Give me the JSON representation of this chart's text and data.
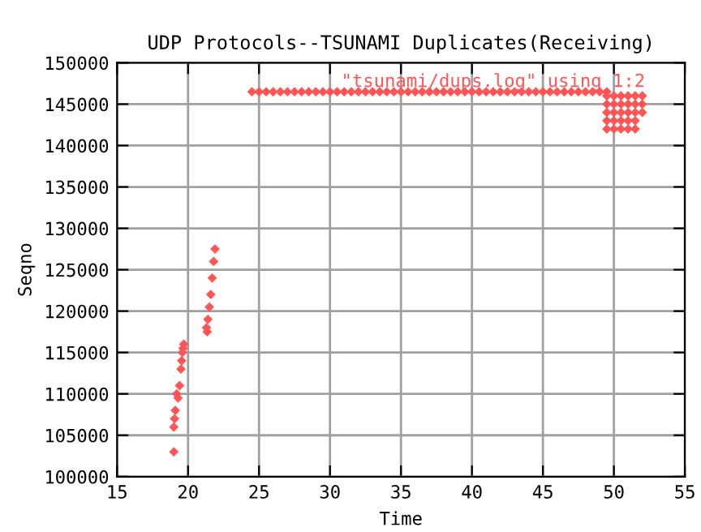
{
  "chart_data": {
    "type": "scatter",
    "title": "UDP Protocols--TSUNAMI Duplicates(Receiving)",
    "xlabel": "Time",
    "ylabel": "Seqno",
    "series": [
      {
        "name": "\"tsunami/dups.log\" using 1:2",
        "color": "#ff5555",
        "x": [
          19.0,
          19.0,
          19.05,
          19.1,
          19.2,
          19.3,
          19.4,
          19.5,
          19.55,
          19.6,
          19.65,
          19.7,
          21.3,
          21.35,
          21.4,
          21.5,
          21.6,
          21.7,
          21.8,
          21.9,
          24.5,
          25.0,
          25.5,
          26.0,
          26.5,
          27.0,
          27.5,
          28.0,
          28.5,
          29.0,
          29.5,
          30.0,
          30.5,
          31.0,
          31.5,
          32.0,
          32.5,
          33.0,
          33.5,
          34.0,
          34.5,
          35.0,
          35.5,
          36.0,
          36.5,
          37.0,
          37.5,
          38.0,
          38.5,
          39.0,
          39.5,
          40.0,
          40.5,
          41.0,
          41.5,
          42.0,
          42.5,
          43.0,
          43.5,
          44.0,
          44.5,
          45.0,
          45.5,
          46.0,
          46.5,
          47.0,
          47.5,
          48.0,
          48.5,
          49.0,
          49.5,
          49.5,
          50.0,
          50.5,
          51.0,
          51.5,
          52.0,
          49.5,
          50.0,
          50.5,
          51.0,
          51.5,
          52.0,
          49.5,
          50.0,
          50.5,
          51.0,
          51.5,
          52.0,
          49.5,
          50.0,
          50.5,
          51.0,
          51.5,
          49.5,
          50.0,
          50.5,
          51.0,
          51.5
        ],
        "values": [
          103000,
          106000,
          107000,
          108000,
          110000,
          109500,
          111000,
          113000,
          114000,
          115000,
          115500,
          116000,
          118000,
          117500,
          119000,
          120500,
          122000,
          124000,
          126000,
          127500,
          146500,
          146500,
          146500,
          146500,
          146500,
          146500,
          146500,
          146500,
          146500,
          146500,
          146500,
          146500,
          146500,
          146500,
          146500,
          146500,
          146500,
          146500,
          146500,
          146500,
          146500,
          146500,
          146500,
          146500,
          146500,
          146500,
          146500,
          146500,
          146500,
          146500,
          146500,
          146500,
          146500,
          146500,
          146500,
          146500,
          146500,
          146500,
          146500,
          146500,
          146500,
          146500,
          146500,
          146500,
          146500,
          146500,
          146500,
          146500,
          146500,
          146500,
          146500,
          146000,
          146000,
          146000,
          146000,
          146000,
          146000,
          145000,
          145000,
          145000,
          145000,
          145000,
          145000,
          144000,
          144000,
          144000,
          144000,
          144000,
          144000,
          143000,
          143000,
          143000,
          143000,
          143000,
          142000,
          142000,
          142000,
          142000,
          142000
        ]
      }
    ],
    "xlim": [
      15,
      55
    ],
    "xticks": [
      15,
      20,
      25,
      30,
      35,
      40,
      45,
      50,
      55
    ],
    "ylim": [
      100000,
      150000
    ],
    "yticks": [
      100000,
      105000,
      110000,
      115000,
      120000,
      125000,
      130000,
      135000,
      140000,
      145000,
      150000
    ],
    "grid": true,
    "legend": "top right",
    "marker": "diamond"
  }
}
